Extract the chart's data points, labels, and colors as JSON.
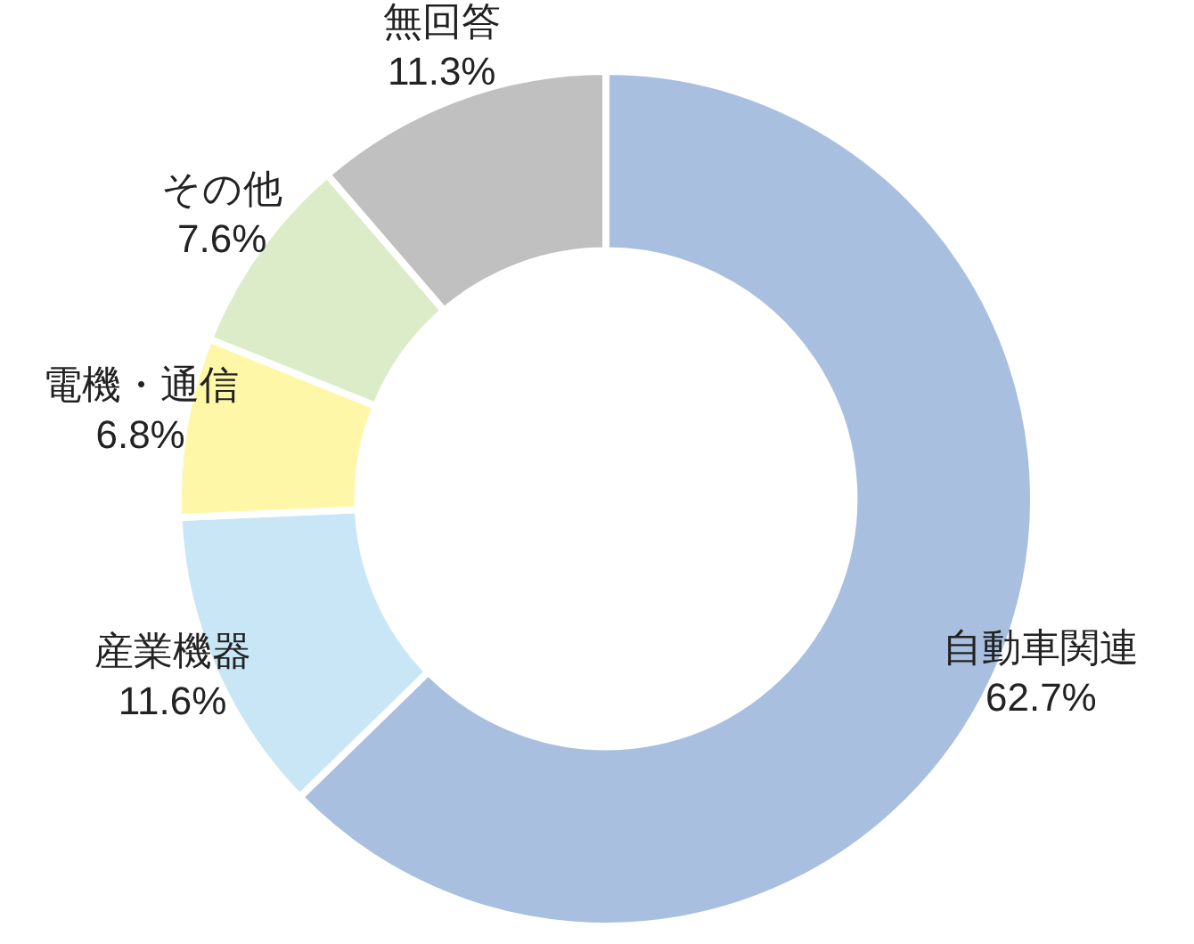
{
  "chart_data": {
    "type": "donut",
    "categories": [
      "自動車関連",
      "産業機器",
      "電機・通信",
      "その他",
      "無回答"
    ],
    "values": [
      62.7,
      11.6,
      6.8,
      7.6,
      11.3
    ],
    "colors": [
      "#a9bfe0",
      "#c9e6f7",
      "#fff7a8",
      "#dcebc8",
      "#c0c0c0"
    ],
    "value_labels": [
      "62.7%",
      "11.6%",
      "6.8%",
      "7.6%",
      "11.3%"
    ]
  }
}
